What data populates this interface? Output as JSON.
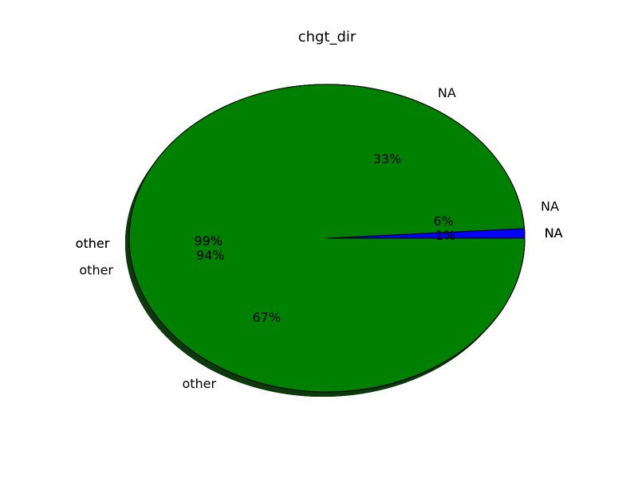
{
  "chart_data": {
    "type": "pie",
    "title": "chgt_dir",
    "pies": [
      {
        "slices": [
          {
            "label": "NA",
            "value": 33,
            "pct_label": "33%"
          },
          {
            "label": "other",
            "value": 67,
            "pct_label": "67%"
          }
        ]
      },
      {
        "slices": [
          {
            "label": "NA",
            "value": 6,
            "pct_label": "6%"
          },
          {
            "label": "other",
            "value": 94,
            "pct_label": "94%"
          }
        ]
      },
      {
        "slices": [
          {
            "label": "NA",
            "value": 1,
            "pct_label": "1%"
          },
          {
            "label": "other",
            "value": 99,
            "pct_label": "99%"
          }
        ]
      },
      {
        "slices": [
          {
            "label": "NA",
            "value": 1,
            "pct_label": "1%"
          },
          {
            "label": "other",
            "value": 99,
            "pct_label": "99%"
          }
        ]
      }
    ],
    "colors": {
      "NA": "#0000ff",
      "other": "#008000",
      "shadow": "#0d3a0d",
      "edge": "#000000"
    },
    "shadow": true,
    "startangle": 0
  }
}
